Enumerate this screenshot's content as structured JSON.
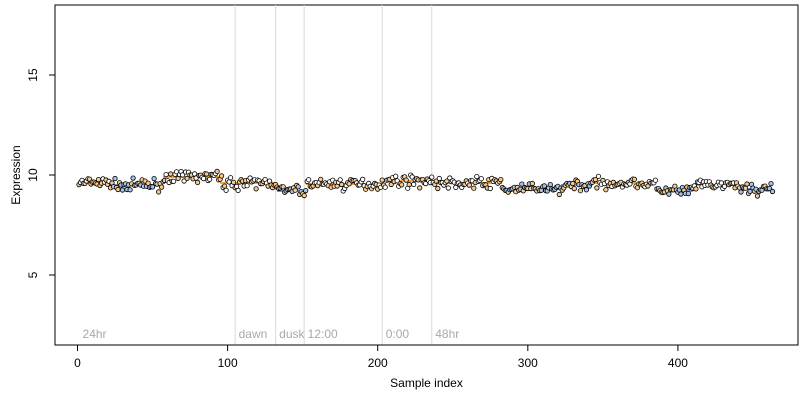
{
  "chart_data": {
    "type": "scatter",
    "xlabel": "Sample index",
    "ylabel": "Expression",
    "xlim": [
      -15,
      480
    ],
    "ylim": [
      1.5,
      18.5
    ],
    "x_ticks": [
      0,
      100,
      200,
      300,
      400
    ],
    "y_ticks": [
      5,
      10,
      15
    ],
    "n_points": 463,
    "colors": {
      "point_edge": "#000000",
      "light_fill": "#f7c98d",
      "dark_fill": "#a8c3e8",
      "light_line": "#f5a238",
      "dark_line": "#6f97d6",
      "divider": "#d9d9d9",
      "annotation": "#a8a8a8"
    },
    "annotations": [
      {
        "label": "24hr",
        "x": 2
      },
      {
        "label": "dawn",
        "x": 106
      },
      {
        "label": "dusk",
        "x": 133
      },
      {
        "label": "12:00",
        "x": 152
      },
      {
        "label": "0:00",
        "x": 204
      },
      {
        "label": "48hr",
        "x": 237
      }
    ],
    "dividers": [
      105,
      132,
      151,
      203,
      236
    ],
    "segments": [
      {
        "x_start": 1,
        "x_end": 22,
        "level": 9.6,
        "phase": "light"
      },
      {
        "x_start": 22,
        "x_end": 57,
        "level": 9.5,
        "phase": "dark"
      },
      {
        "x_start": 57,
        "x_end": 95,
        "level": 9.9,
        "phase": "light"
      },
      {
        "x_start": 95,
        "x_end": 110,
        "level": 9.6,
        "phase": "light"
      },
      {
        "x_start": 110,
        "x_end": 133,
        "level": 9.6,
        "phase": "light"
      },
      {
        "x_start": 133,
        "x_end": 152,
        "level": 9.2,
        "phase": "dark"
      },
      {
        "x_start": 152,
        "x_end": 203,
        "level": 9.55,
        "phase": "light"
      },
      {
        "x_start": 203,
        "x_end": 237,
        "level": 9.7,
        "phase": "light"
      },
      {
        "x_start": 237,
        "x_end": 283,
        "level": 9.6,
        "phase": "light"
      },
      {
        "x_start": 283,
        "x_end": 322,
        "level": 9.3,
        "phase": "dark"
      },
      {
        "x_start": 322,
        "x_end": 342,
        "level": 9.5,
        "phase": "dark"
      },
      {
        "x_start": 342,
        "x_end": 385,
        "level": 9.6,
        "phase": "light"
      },
      {
        "x_start": 385,
        "x_end": 410,
        "level": 9.2,
        "phase": "dark"
      },
      {
        "x_start": 410,
        "x_end": 440,
        "level": 9.5,
        "phase": "light"
      },
      {
        "x_start": 440,
        "x_end": 463,
        "level": 9.3,
        "phase": "dark"
      }
    ]
  }
}
